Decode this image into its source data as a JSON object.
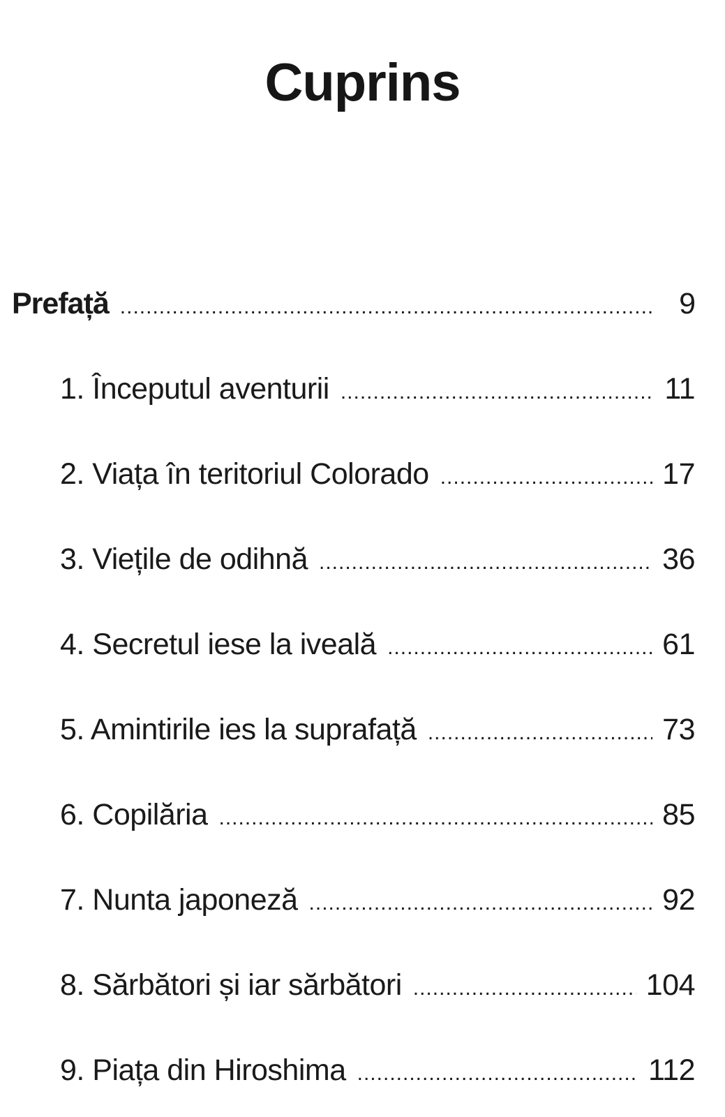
{
  "title": "Cuprins",
  "toc": {
    "preface": {
      "label": "Prefață",
      "page": "9"
    },
    "chapters": [
      {
        "label": "1. Începutul aventurii",
        "page": "11"
      },
      {
        "label": "2. Viața în teritoriul Colorado",
        "page": "17"
      },
      {
        "label": "3. Viețile de odihnă",
        "page": "36"
      },
      {
        "label": "4. Secretul iese la iveală",
        "page": "61"
      },
      {
        "label": "5. Amintirile ies la suprafață",
        "page": "73"
      },
      {
        "label": "6. Copilăria",
        "page": "85"
      },
      {
        "label": "7. Nunta japoneză",
        "page": "92"
      },
      {
        "label": "8. Sărbători și iar sărbători",
        "page": "104"
      },
      {
        "label": "9. Piața din Hiroshima",
        "page": "112"
      }
    ]
  }
}
